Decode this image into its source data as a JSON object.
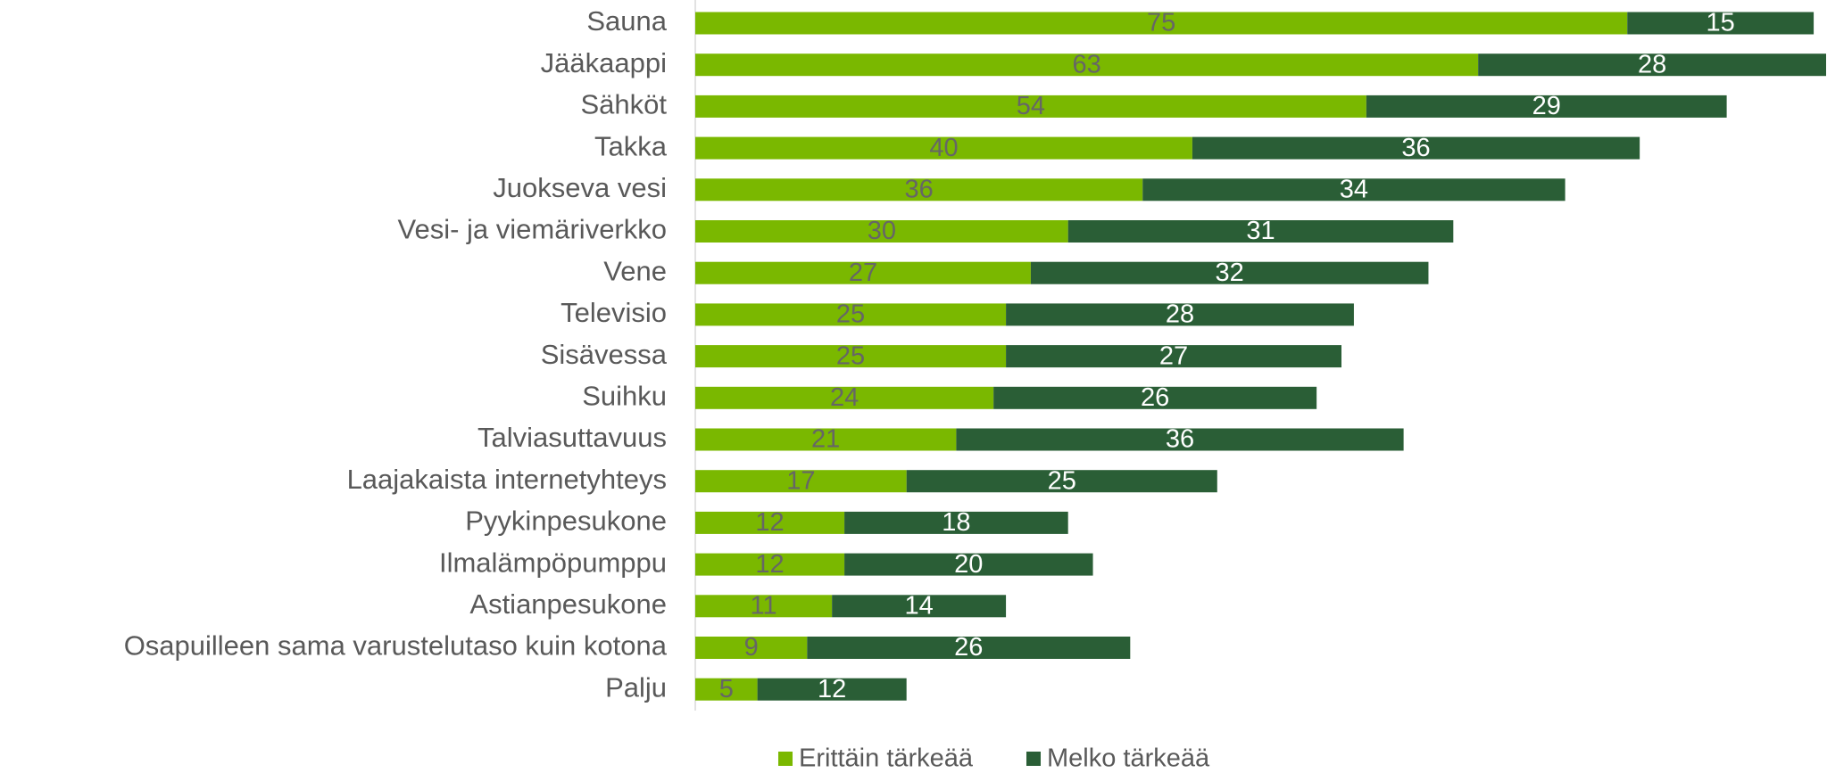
{
  "chart_data": {
    "type": "stacked-bar-horizontal",
    "categories": [
      "Sauna",
      "Jääkaappi",
      "Sähköt",
      "Takka",
      "Juokseva vesi",
      "Vesi- ja viemäriverkko",
      "Vene",
      "Televisio",
      "Sisävessa",
      "Suihku",
      "Talviasuttavuus",
      "Laajakaista internetyhteys",
      "Pyykinpesukone",
      "Ilmalämpöpumppu",
      "Astianpesukone",
      "Osapuilleen sama varustelutaso kuin kotona",
      "Palju"
    ],
    "series": [
      {
        "name": "Erittäin tärkeää",
        "color": "#7ab800",
        "label_color": "#666666",
        "values": [
          75,
          63,
          54,
          40,
          36,
          30,
          27,
          25,
          25,
          24,
          21,
          17,
          12,
          12,
          11,
          9,
          5
        ]
      },
      {
        "name": "Melko tärkeää",
        "color": "#2a5e36",
        "label_color": "#ffffff",
        "values": [
          15,
          28,
          29,
          36,
          34,
          31,
          32,
          28,
          27,
          26,
          36,
          25,
          18,
          20,
          14,
          26,
          12
        ]
      }
    ],
    "legend": "bottom"
  }
}
